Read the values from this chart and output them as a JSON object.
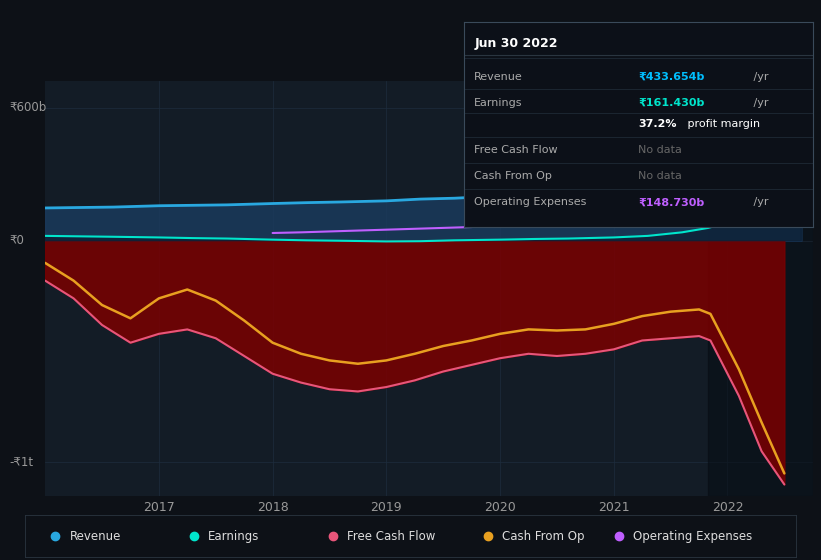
{
  "bg_color": "#0d1117",
  "plot_bg_color": "#131c26",
  "grid_color": "#1e2d3d",
  "revenue_color": "#29a8e0",
  "earnings_color": "#00e5cc",
  "fcf_color": "#e8557a",
  "cashop_color": "#e8a020",
  "opex_color": "#bf5fff",
  "fill_above_color": "#1a3a5c",
  "fill_below_color": "#7a0000",
  "highlight_color": "#0d1117",
  "ylim": [
    -1150,
    720
  ],
  "xlim": [
    2016.0,
    2022.75
  ],
  "x_ticks": [
    2017,
    2018,
    2019,
    2020,
    2021,
    2022
  ],
  "y_zero": 0,
  "y_top_label": "₹600b",
  "y_zero_label": "₹0",
  "y_bottom_label": "-₹1t",
  "tooltip_title": "Jun 30 2022",
  "legend_items": [
    {
      "label": "Revenue",
      "color": "#29a8e0"
    },
    {
      "label": "Earnings",
      "color": "#00e5cc"
    },
    {
      "label": "Free Cash Flow",
      "color": "#e8557a"
    },
    {
      "label": "Cash From Op",
      "color": "#e8a020"
    },
    {
      "label": "Operating Expenses",
      "color": "#bf5fff"
    }
  ],
  "revenue_x": [
    2016.0,
    2016.3,
    2016.6,
    2017.0,
    2017.3,
    2017.6,
    2018.0,
    2018.3,
    2018.6,
    2019.0,
    2019.3,
    2019.6,
    2020.0,
    2020.3,
    2020.6,
    2021.0,
    2021.3,
    2021.6,
    2021.83,
    2022.0,
    2022.2,
    2022.45,
    2022.65
  ],
  "revenue_y": [
    148,
    150,
    152,
    158,
    160,
    162,
    168,
    172,
    175,
    180,
    188,
    192,
    202,
    208,
    200,
    196,
    210,
    228,
    248,
    295,
    345,
    400,
    433
  ],
  "earnings_x": [
    2016.0,
    2016.3,
    2016.6,
    2017.0,
    2017.3,
    2017.6,
    2018.0,
    2018.3,
    2018.6,
    2019.0,
    2019.3,
    2019.6,
    2020.0,
    2020.3,
    2020.6,
    2021.0,
    2021.3,
    2021.6,
    2021.83,
    2022.0,
    2022.2,
    2022.45,
    2022.65
  ],
  "earnings_y": [
    22,
    20,
    18,
    15,
    12,
    10,
    5,
    2,
    0,
    -3,
    -2,
    2,
    5,
    8,
    10,
    15,
    22,
    38,
    58,
    82,
    115,
    145,
    161
  ],
  "fcf_x": [
    2016.0,
    2016.25,
    2016.5,
    2016.75,
    2017.0,
    2017.25,
    2017.5,
    2017.75,
    2018.0,
    2018.25,
    2018.5,
    2018.75,
    2019.0,
    2019.25,
    2019.5,
    2019.75,
    2020.0,
    2020.25,
    2020.5,
    2020.75,
    2021.0,
    2021.25,
    2021.5,
    2021.75,
    2021.85,
    2022.1,
    2022.3,
    2022.5
  ],
  "fcf_y": [
    -180,
    -260,
    -380,
    -460,
    -420,
    -400,
    -440,
    -520,
    -600,
    -640,
    -670,
    -680,
    -660,
    -630,
    -590,
    -560,
    -530,
    -510,
    -520,
    -510,
    -490,
    -450,
    -440,
    -430,
    -450,
    -700,
    -950,
    -1100
  ],
  "cashop_x": [
    2016.0,
    2016.25,
    2016.5,
    2016.75,
    2017.0,
    2017.25,
    2017.5,
    2017.75,
    2018.0,
    2018.25,
    2018.5,
    2018.75,
    2019.0,
    2019.25,
    2019.5,
    2019.75,
    2020.0,
    2020.25,
    2020.5,
    2020.75,
    2021.0,
    2021.25,
    2021.5,
    2021.75,
    2021.85,
    2022.1,
    2022.3,
    2022.5
  ],
  "cashop_y": [
    -100,
    -180,
    -290,
    -350,
    -260,
    -220,
    -270,
    -360,
    -460,
    -510,
    -540,
    -555,
    -540,
    -510,
    -475,
    -450,
    -420,
    -400,
    -405,
    -400,
    -375,
    -340,
    -320,
    -310,
    -330,
    -580,
    -820,
    -1050
  ],
  "opex_x": [
    2018.0,
    2018.25,
    2018.5,
    2018.75,
    2019.0,
    2019.25,
    2019.5,
    2019.75,
    2020.0,
    2020.25,
    2020.5,
    2020.75,
    2021.0,
    2021.25,
    2021.5,
    2021.75,
    2022.0,
    2022.25,
    2022.5
  ],
  "opex_y": [
    35,
    38,
    42,
    46,
    50,
    54,
    58,
    62,
    68,
    72,
    76,
    82,
    90,
    100,
    112,
    125,
    138,
    145,
    149
  ]
}
